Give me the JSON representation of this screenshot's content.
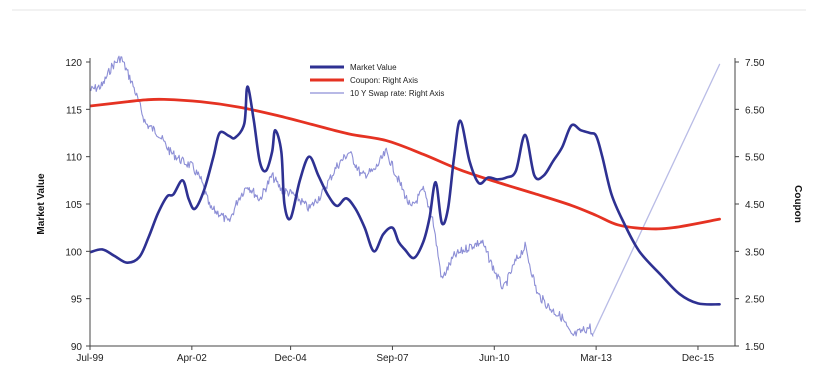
{
  "chart_data": {
    "type": "line",
    "title": "",
    "xlabel": "",
    "ylabel": "Market Value",
    "y2label": "Coupon",
    "ylim": [
      90,
      120
    ],
    "y2lim": [
      1.5,
      7.5
    ],
    "xlim": [
      "1999-07",
      "2016-12"
    ],
    "grid": false,
    "legend_position": "top-center",
    "x_tick_labels": [
      "Jul-99",
      "Apr-02",
      "Dec-04",
      "Sep-07",
      "Jun-10",
      "Mar-13",
      "Dec-15"
    ],
    "x_tick_dates": [
      "1999-07",
      "2002-04",
      "2004-12",
      "2007-09",
      "2010-06",
      "2013-03",
      "2015-12"
    ],
    "y_ticks": [
      90,
      95,
      100,
      105,
      110,
      115,
      120
    ],
    "y2_ticks": [
      "1.50",
      "2.50",
      "3.50",
      "4.50",
      "5.50",
      "6.50",
      "7.50"
    ],
    "series": [
      {
        "name": "Market Value",
        "axis": "left",
        "color": "#2e3192",
        "style": "solid",
        "points": [
          [
            "1999-07",
            99.9
          ],
          [
            "1999-11",
            100.2
          ],
          [
            "2000-03",
            99.5
          ],
          [
            "2000-07",
            98.8
          ],
          [
            "2000-11",
            99.4
          ],
          [
            "2001-02",
            101.5
          ],
          [
            "2001-05",
            104.0
          ],
          [
            "2001-08",
            105.8
          ],
          [
            "2001-10",
            106.0
          ],
          [
            "2002-01",
            107.5
          ],
          [
            "2002-03",
            105.5
          ],
          [
            "2002-05",
            104.5
          ],
          [
            "2002-08",
            106.5
          ],
          [
            "2002-11",
            110.0
          ],
          [
            "2003-01",
            112.5
          ],
          [
            "2003-04",
            112.2
          ],
          [
            "2003-06",
            112.0
          ],
          [
            "2003-09",
            113.5
          ],
          [
            "2003-10",
            117.4
          ],
          [
            "2003-12",
            114.0
          ],
          [
            "2004-02",
            109.5
          ],
          [
            "2004-04",
            108.5
          ],
          [
            "2004-06",
            110.5
          ],
          [
            "2004-07",
            112.8
          ],
          [
            "2004-09",
            110.5
          ],
          [
            "2004-10",
            105.0
          ],
          [
            "2004-12",
            103.5
          ],
          [
            "2005-03",
            107.5
          ],
          [
            "2005-06",
            110.0
          ],
          [
            "2005-09",
            108.0
          ],
          [
            "2005-12",
            106.0
          ],
          [
            "2006-03",
            104.8
          ],
          [
            "2006-06",
            105.6
          ],
          [
            "2006-09",
            104.5
          ],
          [
            "2006-12",
            102.5
          ],
          [
            "2007-03",
            100.0
          ],
          [
            "2007-06",
            101.8
          ],
          [
            "2007-09",
            102.5
          ],
          [
            "2007-11",
            101.0
          ],
          [
            "2008-01",
            100.2
          ],
          [
            "2008-04",
            99.3
          ],
          [
            "2008-07",
            101.0
          ],
          [
            "2008-09",
            103.5
          ],
          [
            "2008-11",
            107.3
          ],
          [
            "2009-01",
            103.0
          ],
          [
            "2009-03",
            104.5
          ],
          [
            "2009-05",
            110.0
          ],
          [
            "2009-07",
            113.8
          ],
          [
            "2009-10",
            109.5
          ],
          [
            "2010-01",
            107.2
          ],
          [
            "2010-04",
            107.8
          ],
          [
            "2010-07",
            107.6
          ],
          [
            "2010-10",
            107.8
          ],
          [
            "2011-01",
            108.5
          ],
          [
            "2011-04",
            112.3
          ],
          [
            "2011-07",
            108.0
          ],
          [
            "2011-10",
            108.0
          ],
          [
            "2012-01",
            109.5
          ],
          [
            "2012-04",
            111.0
          ],
          [
            "2012-07",
            113.3
          ],
          [
            "2012-10",
            112.8
          ],
          [
            "2013-01",
            112.5
          ],
          [
            "2013-03",
            112.2
          ],
          [
            "2013-05",
            110.0
          ],
          [
            "2013-08",
            106.0
          ],
          [
            "2013-12",
            103.0
          ],
          [
            "2014-05",
            100.0
          ],
          [
            "2014-12",
            97.5
          ],
          [
            "2015-06",
            95.5
          ],
          [
            "2015-12",
            94.5
          ],
          [
            "2016-07",
            94.4
          ]
        ]
      },
      {
        "name": "Coupon: Right Axis",
        "axis": "right",
        "color": "#e53222",
        "style": "solid",
        "points": [
          [
            "1999-07",
            6.57
          ],
          [
            "2000-07",
            6.66
          ],
          [
            "2001-01",
            6.7
          ],
          [
            "2001-07",
            6.71
          ],
          [
            "2002-07",
            6.66
          ],
          [
            "2003-07",
            6.55
          ],
          [
            "2004-07",
            6.38
          ],
          [
            "2005-07",
            6.18
          ],
          [
            "2006-07",
            5.98
          ],
          [
            "2007-07",
            5.84
          ],
          [
            "2008-07",
            5.55
          ],
          [
            "2009-07",
            5.22
          ],
          [
            "2010-07",
            4.96
          ],
          [
            "2011-07",
            4.72
          ],
          [
            "2012-07",
            4.47
          ],
          [
            "2013-03",
            4.26
          ],
          [
            "2013-10",
            4.06
          ],
          [
            "2014-07",
            3.98
          ],
          [
            "2015-04",
            4.0
          ],
          [
            "2016-07",
            4.18
          ]
        ]
      },
      {
        "name": "10 Y Swap rate: Right Axis",
        "axis": "right",
        "color": "#8d8fd6",
        "style": "noisy",
        "points": [
          [
            "1999-07",
            6.9
          ],
          [
            "1999-11",
            7.0
          ],
          [
            "2000-02",
            7.4
          ],
          [
            "2000-05",
            7.6
          ],
          [
            "2000-09",
            7.0
          ],
          [
            "2001-01",
            6.2
          ],
          [
            "2001-05",
            6.0
          ],
          [
            "2001-09",
            5.6
          ],
          [
            "2002-01",
            5.4
          ],
          [
            "2002-04",
            5.3
          ],
          [
            "2002-07",
            5.0
          ],
          [
            "2002-10",
            4.4
          ],
          [
            "2003-01",
            4.3
          ],
          [
            "2003-04",
            4.1
          ],
          [
            "2003-07",
            4.6
          ],
          [
            "2003-10",
            4.9
          ],
          [
            "2004-02",
            4.6
          ],
          [
            "2004-06",
            5.1
          ],
          [
            "2004-09",
            4.8
          ],
          [
            "2005-01",
            4.7
          ],
          [
            "2005-06",
            4.4
          ],
          [
            "2005-10",
            4.7
          ],
          [
            "2006-03",
            5.3
          ],
          [
            "2006-07",
            5.6
          ],
          [
            "2006-11",
            5.1
          ],
          [
            "2007-03",
            5.2
          ],
          [
            "2007-07",
            5.6
          ],
          [
            "2007-11",
            5.0
          ],
          [
            "2008-03",
            4.4
          ],
          [
            "2008-07",
            4.8
          ],
          [
            "2008-10",
            4.2
          ],
          [
            "2009-01",
            2.9
          ],
          [
            "2009-05",
            3.4
          ],
          [
            "2009-10",
            3.6
          ],
          [
            "2010-02",
            3.7
          ],
          [
            "2010-06",
            3.1
          ],
          [
            "2010-09",
            2.7
          ],
          [
            "2011-01",
            3.3
          ],
          [
            "2011-04",
            3.6
          ],
          [
            "2011-08",
            2.6
          ],
          [
            "2011-12",
            2.3
          ],
          [
            "2012-04",
            2.1
          ],
          [
            "2012-07",
            1.7
          ],
          [
            "2012-10",
            1.8
          ],
          [
            "2013-01",
            1.9
          ],
          [
            "2013-02",
            1.7
          ]
        ]
      },
      {
        "name": "10 Y Swap rate (projected)",
        "axis": "right",
        "color": "#b9bce6",
        "style": "solid",
        "show_in_legend": false,
        "points": [
          [
            "2013-02",
            1.75
          ],
          [
            "2016-07",
            7.45
          ]
        ]
      }
    ]
  }
}
